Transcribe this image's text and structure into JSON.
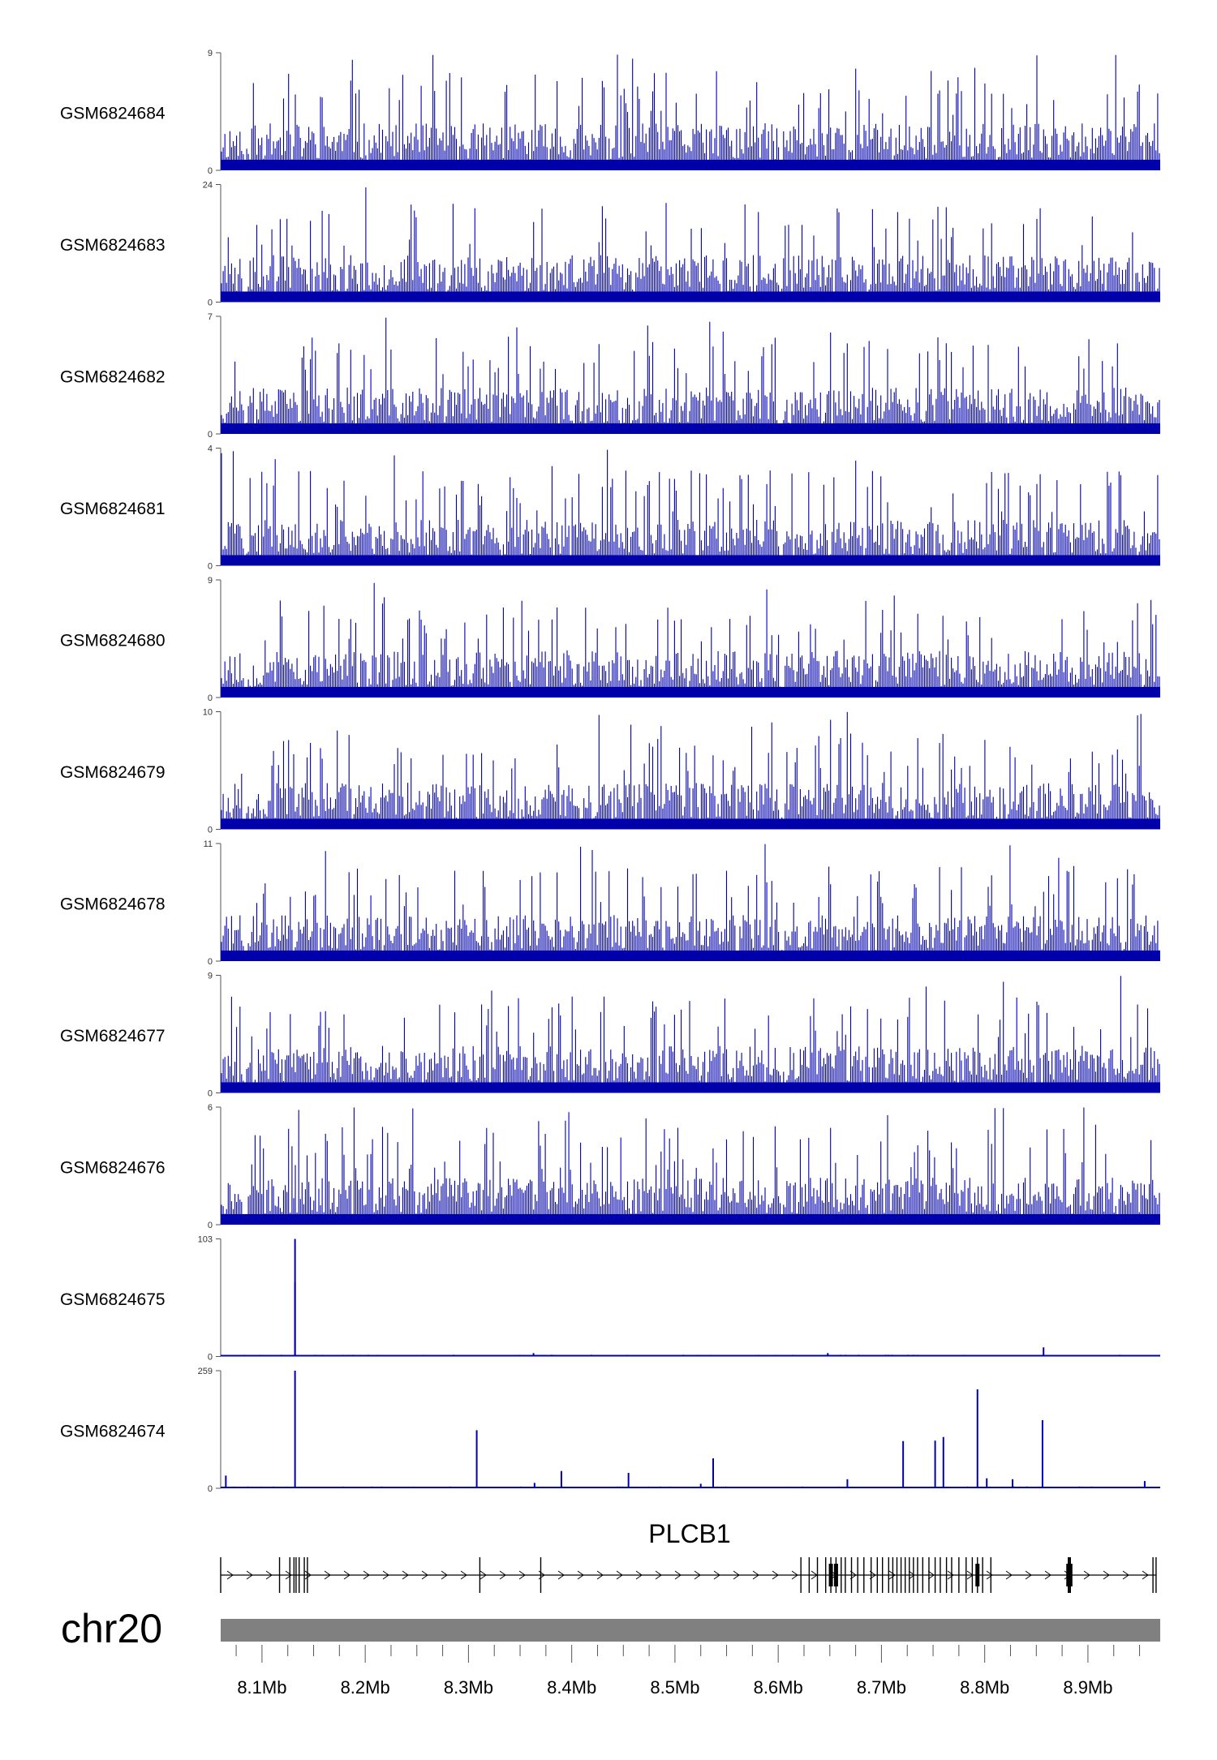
{
  "chart_data": {
    "type": "area",
    "title": "",
    "color": "#0000aa",
    "chromosome": "chr20",
    "gene": "PLCB1",
    "x_range_mb": [
      8.06,
      8.97
    ],
    "x_ticks": [
      8.1,
      8.2,
      8.3,
      8.4,
      8.5,
      8.6,
      8.7,
      8.8,
      8.9
    ],
    "x_tick_labels": [
      "8.1Mb",
      "8.2Mb",
      "8.3Mb",
      "8.4Mb",
      "8.5Mb",
      "8.6Mb",
      "8.7Mb",
      "8.8Mb",
      "8.9Mb"
    ],
    "tracks": [
      {
        "name": "GSM6824684",
        "ymin": 0,
        "ymax": 9,
        "ymin_label": "0",
        "ymax_label": "9",
        "profile": "noise",
        "base": 3.0,
        "seed": 11
      },
      {
        "name": "GSM6824683",
        "ymin": 0,
        "ymax": 24,
        "ymin_label": "0",
        "ymax_label": "24",
        "profile": "noise",
        "base": 8.0,
        "seed": 23
      },
      {
        "name": "GSM6824682",
        "ymin": 0,
        "ymax": 7,
        "ymin_label": "0",
        "ymax_label": "7",
        "profile": "noise",
        "base": 2.3,
        "seed": 37
      },
      {
        "name": "GSM6824681",
        "ymin": 0,
        "ymax": 4,
        "ymin_label": "0",
        "ymax_label": "4",
        "profile": "noise",
        "base": 1.3,
        "seed": 41
      },
      {
        "name": "GSM6824680",
        "ymin": 0,
        "ymax": 9,
        "ymin_label": "0",
        "ymax_label": "9",
        "profile": "noise",
        "base": 3.0,
        "seed": 53
      },
      {
        "name": "GSM6824679",
        "ymin": 0,
        "ymax": 10,
        "ymin_label": "0",
        "ymax_label": "10",
        "profile": "noise",
        "base": 3.3,
        "seed": 67
      },
      {
        "name": "GSM6824678",
        "ymin": 0,
        "ymax": 11,
        "ymin_label": "0",
        "ymax_label": "11",
        "profile": "noise",
        "base": 3.6,
        "seed": 71
      },
      {
        "name": "GSM6824677",
        "ymin": 0,
        "ymax": 9,
        "ymin_label": "0",
        "ymax_label": "9",
        "profile": "noise",
        "base": 3.0,
        "seed": 83
      },
      {
        "name": "GSM6824676",
        "ymin": 0,
        "ymax": 6,
        "ymin_label": "0",
        "ymax_label": "6",
        "profile": "noise",
        "base": 2.0,
        "seed": 97
      },
      {
        "name": "GSM6824675",
        "ymin": 0,
        "ymax": 103,
        "ymin_label": "0",
        "ymax_label": "103",
        "profile": "peaks",
        "peaks": [
          {
            "x": 8.132,
            "y": 103
          },
          {
            "x": 8.132,
            "y": 65
          },
          {
            "x": 8.363,
            "y": 3
          },
          {
            "x": 8.648,
            "y": 3
          },
          {
            "x": 8.857,
            "y": 8
          }
        ]
      },
      {
        "name": "GSM6824674",
        "ymin": 0,
        "ymax": 259,
        "ymin_label": "0",
        "ymax_label": "259",
        "profile": "peaks",
        "peaks": [
          {
            "x": 8.065,
            "y": 28
          },
          {
            "x": 8.132,
            "y": 259
          },
          {
            "x": 8.308,
            "y": 128
          },
          {
            "x": 8.364,
            "y": 12
          },
          {
            "x": 8.39,
            "y": 38
          },
          {
            "x": 8.455,
            "y": 34
          },
          {
            "x": 8.525,
            "y": 10
          },
          {
            "x": 8.537,
            "y": 66
          },
          {
            "x": 8.667,
            "y": 20
          },
          {
            "x": 8.721,
            "y": 104
          },
          {
            "x": 8.752,
            "y": 105
          },
          {
            "x": 8.76,
            "y": 113
          },
          {
            "x": 8.793,
            "y": 218
          },
          {
            "x": 8.802,
            "y": 22
          },
          {
            "x": 8.827,
            "y": 20
          },
          {
            "x": 8.856,
            "y": 150
          },
          {
            "x": 8.955,
            "y": 16
          }
        ]
      }
    ],
    "gene_model": {
      "strand": "+",
      "exons": [
        8.06,
        8.117,
        8.127,
        8.131,
        8.133,
        8.136,
        8.141,
        8.144,
        8.311,
        8.37,
        8.622,
        8.63,
        8.638,
        8.646,
        8.651,
        8.656,
        8.661,
        8.665,
        8.671,
        8.677,
        8.683,
        8.69,
        8.696,
        8.701,
        8.707,
        8.711,
        8.715,
        8.719,
        8.723,
        8.727,
        8.731,
        8.735,
        8.74,
        8.746,
        8.752,
        8.757,
        8.763,
        8.768,
        8.775,
        8.782,
        8.788,
        8.793,
        8.798,
        8.806,
        8.881,
        8.882,
        8.883,
        8.963,
        8.966
      ],
      "thick_exons": [
        8.651,
        8.656,
        8.793,
        8.881,
        8.882,
        8.883
      ]
    }
  }
}
